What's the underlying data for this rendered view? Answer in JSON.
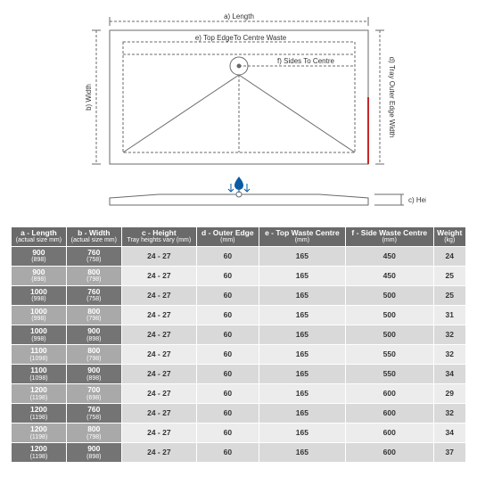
{
  "diagram": {
    "labels": {
      "a": "a) Length",
      "b": "b) Width",
      "c": "c) Height",
      "d": "d) Tray Outer Edge Width",
      "e": "e) Top EdgeTo Centre Waste",
      "f": "f) Sides To Centre"
    },
    "colors": {
      "line": "#6a6a6a",
      "accent": "#c62828",
      "water": "#0b5aa4",
      "dash": "3,2"
    },
    "fontsize": 8
  },
  "table": {
    "columns": [
      {
        "t": "a - Length",
        "s": "(actual size mm)"
      },
      {
        "t": "b - Width",
        "s": "(actual size mm)"
      },
      {
        "t": "c - Height",
        "s": "Tray heights vary (mm)"
      },
      {
        "t": "d - Outer Edge",
        "s": "(mm)"
      },
      {
        "t": "e - Top Waste Centre",
        "s": "(mm)"
      },
      {
        "t": "f - Side Waste Centre",
        "s": "(mm)"
      },
      {
        "t": "Weight",
        "s": "(kg)"
      }
    ],
    "rows": [
      {
        "a": "900",
        "as": "(898)",
        "b": "760",
        "bs": "(758)",
        "c": "24 - 27",
        "d": "60",
        "e": "165",
        "f": "450",
        "w": "24"
      },
      {
        "a": "900",
        "as": "(898)",
        "b": "800",
        "bs": "(798)",
        "c": "24 - 27",
        "d": "60",
        "e": "165",
        "f": "450",
        "w": "25"
      },
      {
        "a": "1000",
        "as": "(998)",
        "b": "760",
        "bs": "(758)",
        "c": "24 - 27",
        "d": "60",
        "e": "165",
        "f": "500",
        "w": "25"
      },
      {
        "a": "1000",
        "as": "(998)",
        "b": "800",
        "bs": "(798)",
        "c": "24 - 27",
        "d": "60",
        "e": "165",
        "f": "500",
        "w": "31"
      },
      {
        "a": "1000",
        "as": "(998)",
        "b": "900",
        "bs": "(898)",
        "c": "24 - 27",
        "d": "60",
        "e": "165",
        "f": "500",
        "w": "32"
      },
      {
        "a": "1100",
        "as": "(1098)",
        "b": "800",
        "bs": "(798)",
        "c": "24 - 27",
        "d": "60",
        "e": "165",
        "f": "550",
        "w": "32"
      },
      {
        "a": "1100",
        "as": "(1098)",
        "b": "900",
        "bs": "(898)",
        "c": "24 - 27",
        "d": "60",
        "e": "165",
        "f": "550",
        "w": "34"
      },
      {
        "a": "1200",
        "as": "(1198)",
        "b": "700",
        "bs": "(698)",
        "c": "24 - 27",
        "d": "60",
        "e": "165",
        "f": "600",
        "w": "29"
      },
      {
        "a": "1200",
        "as": "(1198)",
        "b": "760",
        "bs": "(758)",
        "c": "24 - 27",
        "d": "60",
        "e": "165",
        "f": "600",
        "w": "32"
      },
      {
        "a": "1200",
        "as": "(1198)",
        "b": "800",
        "bs": "(798)",
        "c": "24 - 27",
        "d": "60",
        "e": "165",
        "f": "600",
        "w": "34"
      },
      {
        "a": "1200",
        "as": "(1198)",
        "b": "900",
        "bs": "(898)",
        "c": "24 - 27",
        "d": "60",
        "e": "165",
        "f": "600",
        "w": "37"
      }
    ]
  }
}
